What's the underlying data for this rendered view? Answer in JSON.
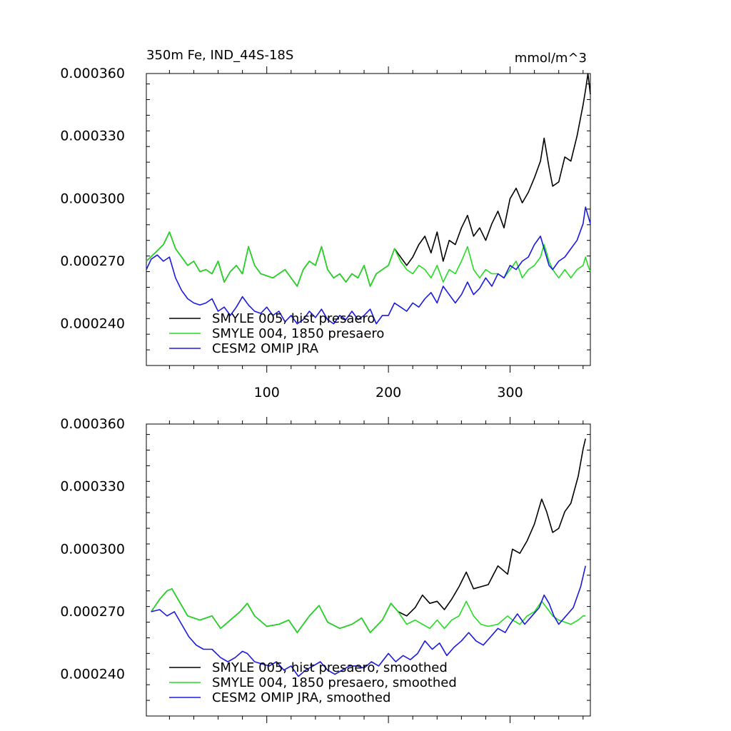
{
  "chart_data": [
    {
      "type": "line",
      "title": "350m Fe, IND_44S-18S",
      "units": "mmol/m^3",
      "xlim": [
        1,
        366
      ],
      "ylim": [
        0.00022,
        0.00036
      ],
      "x_ticks": [
        100,
        200,
        300
      ],
      "x_tick_labels": [
        "100",
        "200",
        "300"
      ],
      "y_ticks": [
        0.00024,
        0.00027,
        0.0003,
        0.00033,
        0.00036
      ],
      "y_tick_labels": [
        "0.000240",
        "0.000270",
        "0.000300",
        "0.000330",
        "0.000360"
      ],
      "legend_position": "bottom-left",
      "series": [
        {
          "name": "SMYLE 005, hist presaero",
          "color": "#000000",
          "x": [
            1,
            10,
            15,
            20,
            25,
            30,
            35,
            40,
            45,
            50,
            55,
            60,
            65,
            70,
            75,
            80,
            85,
            90,
            95,
            100,
            105,
            110,
            115,
            120,
            125,
            130,
            135,
            140,
            145,
            150,
            155,
            160,
            165,
            170,
            175,
            180,
            185,
            190,
            195,
            200,
            205,
            210,
            215,
            220,
            225,
            230,
            235,
            240,
            245,
            250,
            255,
            260,
            265,
            270,
            275,
            280,
            285,
            290,
            295,
            300,
            305,
            310,
            315,
            320,
            325,
            328,
            332,
            335,
            340,
            345,
            350,
            355,
            360,
            362,
            364,
            366
          ],
          "values": [
            0.00027,
            0.000275,
            0.000278,
            0.000284,
            0.000276,
            0.000272,
            0.000268,
            0.00027,
            0.000265,
            0.000266,
            0.000264,
            0.00027,
            0.00026,
            0.000265,
            0.000268,
            0.000264,
            0.000277,
            0.000268,
            0.000264,
            0.000263,
            0.000262,
            0.000264,
            0.000266,
            0.000262,
            0.000258,
            0.000266,
            0.00027,
            0.000268,
            0.000277,
            0.000266,
            0.000262,
            0.000264,
            0.00026,
            0.000264,
            0.000262,
            0.000268,
            0.000258,
            0.000264,
            0.000266,
            0.000268,
            0.000276,
            0.000272,
            0.000268,
            0.000272,
            0.000278,
            0.000282,
            0.000274,
            0.000284,
            0.00027,
            0.00028,
            0.000278,
            0.000286,
            0.000292,
            0.000282,
            0.000286,
            0.00028,
            0.000288,
            0.000294,
            0.000286,
            0.0003,
            0.000305,
            0.000298,
            0.000303,
            0.00031,
            0.000318,
            0.000329,
            0.000315,
            0.000306,
            0.000308,
            0.00032,
            0.000318,
            0.00033,
            0.000345,
            0.000352,
            0.00036,
            0.00035
          ]
        },
        {
          "name": "SMYLE 004, 1850 presaero",
          "color": "#22dd22",
          "x": [
            1,
            10,
            15,
            20,
            25,
            30,
            35,
            40,
            45,
            50,
            55,
            60,
            65,
            70,
            75,
            80,
            85,
            90,
            95,
            100,
            105,
            110,
            115,
            120,
            125,
            130,
            135,
            140,
            145,
            150,
            155,
            160,
            165,
            170,
            175,
            180,
            185,
            190,
            195,
            200,
            205,
            210,
            215,
            220,
            225,
            230,
            235,
            240,
            245,
            250,
            255,
            260,
            265,
            270,
            275,
            280,
            285,
            290,
            295,
            300,
            305,
            310,
            315,
            320,
            325,
            328,
            332,
            335,
            340,
            345,
            350,
            355,
            360,
            362,
            364,
            366
          ],
          "values": [
            0.00027,
            0.000275,
            0.000278,
            0.000284,
            0.000276,
            0.000272,
            0.000268,
            0.00027,
            0.000265,
            0.000266,
            0.000264,
            0.00027,
            0.00026,
            0.000265,
            0.000268,
            0.000264,
            0.000277,
            0.000268,
            0.000264,
            0.000263,
            0.000262,
            0.000264,
            0.000266,
            0.000262,
            0.000258,
            0.000266,
            0.00027,
            0.000268,
            0.000277,
            0.000266,
            0.000262,
            0.000264,
            0.00026,
            0.000264,
            0.000262,
            0.000268,
            0.000258,
            0.000264,
            0.000266,
            0.000268,
            0.000276,
            0.00027,
            0.000266,
            0.000264,
            0.000268,
            0.000266,
            0.000262,
            0.000268,
            0.00026,
            0.000266,
            0.000264,
            0.00027,
            0.000277,
            0.000266,
            0.000262,
            0.000266,
            0.000264,
            0.000264,
            0.000262,
            0.000266,
            0.00027,
            0.000262,
            0.000266,
            0.000268,
            0.000272,
            0.000278,
            0.00027,
            0.000266,
            0.000262,
            0.000266,
            0.000262,
            0.000266,
            0.000268,
            0.000272,
            0.000268,
            0.000265
          ]
        },
        {
          "name": "CESM2 OMIP JRA",
          "color": "#1a1add",
          "x": [
            1,
            5,
            10,
            15,
            20,
            25,
            30,
            35,
            40,
            45,
            50,
            55,
            60,
            65,
            70,
            75,
            80,
            85,
            90,
            95,
            100,
            105,
            110,
            115,
            120,
            125,
            130,
            135,
            140,
            145,
            150,
            155,
            160,
            165,
            170,
            175,
            180,
            185,
            190,
            195,
            200,
            205,
            210,
            215,
            220,
            225,
            230,
            235,
            240,
            245,
            250,
            255,
            260,
            265,
            270,
            275,
            280,
            285,
            290,
            295,
            300,
            305,
            310,
            315,
            320,
            325,
            328,
            332,
            335,
            340,
            345,
            350,
            355,
            360,
            362,
            364,
            366
          ],
          "values": [
            0.000266,
            0.000271,
            0.000273,
            0.00027,
            0.000272,
            0.000262,
            0.000256,
            0.000252,
            0.00025,
            0.000249,
            0.00025,
            0.000252,
            0.000246,
            0.000248,
            0.000244,
            0.000248,
            0.000253,
            0.000249,
            0.000246,
            0.000245,
            0.000248,
            0.000244,
            0.000246,
            0.000241,
            0.000244,
            0.00024,
            0.000242,
            0.000246,
            0.000243,
            0.000247,
            0.000242,
            0.00024,
            0.000244,
            0.000242,
            0.000246,
            0.000242,
            0.000244,
            0.000247,
            0.00024,
            0.000244,
            0.000244,
            0.00025,
            0.000248,
            0.000246,
            0.00025,
            0.000248,
            0.000252,
            0.000255,
            0.00025,
            0.000258,
            0.000254,
            0.00025,
            0.000254,
            0.00026,
            0.000254,
            0.000257,
            0.000262,
            0.000258,
            0.000264,
            0.000262,
            0.000268,
            0.000266,
            0.00027,
            0.000272,
            0.000278,
            0.000282,
            0.000276,
            0.000268,
            0.000266,
            0.00027,
            0.000272,
            0.000276,
            0.00028,
            0.000288,
            0.000296,
            0.000292,
            0.000288
          ]
        }
      ]
    },
    {
      "type": "line",
      "title": "",
      "units": "",
      "xlim": [
        1,
        366
      ],
      "ylim": [
        0.00022,
        0.00036
      ],
      "x_ticks": [
        100,
        200,
        300
      ],
      "x_tick_labels": [],
      "y_ticks": [
        0.00024,
        0.00027,
        0.0003,
        0.00033,
        0.00036
      ],
      "y_tick_labels": [
        "0.000240",
        "0.000270",
        "0.000300",
        "0.000330",
        "0.000360"
      ],
      "legend_position": "bottom-left",
      "series": [
        {
          "name": "SMYLE 005, hist presaero, smoothed",
          "color": "#000000",
          "x": [
            5,
            12,
            18,
            22,
            28,
            35,
            45,
            55,
            62,
            70,
            78,
            84,
            90,
            100,
            110,
            118,
            125,
            135,
            143,
            150,
            160,
            170,
            178,
            185,
            195,
            202,
            208,
            215,
            222,
            228,
            234,
            240,
            246,
            252,
            258,
            264,
            270,
            276,
            282,
            290,
            298,
            302,
            308,
            314,
            320,
            326,
            330,
            335,
            340,
            345,
            350,
            356,
            360,
            362
          ],
          "values": [
            0.00027,
            0.000276,
            0.00028,
            0.000281,
            0.000275,
            0.000268,
            0.000266,
            0.000268,
            0.000262,
            0.000266,
            0.00027,
            0.000274,
            0.000268,
            0.000263,
            0.000264,
            0.000266,
            0.00026,
            0.000268,
            0.000273,
            0.000265,
            0.000262,
            0.000264,
            0.000267,
            0.00026,
            0.000266,
            0.000274,
            0.00027,
            0.000268,
            0.000272,
            0.000278,
            0.000274,
            0.000275,
            0.000271,
            0.000276,
            0.000282,
            0.000289,
            0.000281,
            0.000282,
            0.000283,
            0.000292,
            0.000288,
            0.0003,
            0.000298,
            0.000304,
            0.000312,
            0.000324,
            0.000318,
            0.000308,
            0.00031,
            0.000318,
            0.000322,
            0.000335,
            0.000348,
            0.000353
          ]
        },
        {
          "name": "SMYLE 004, 1850 presaero, smoothed",
          "color": "#22dd22",
          "x": [
            5,
            12,
            18,
            22,
            28,
            35,
            45,
            55,
            62,
            70,
            78,
            84,
            90,
            100,
            110,
            118,
            125,
            135,
            143,
            150,
            160,
            170,
            178,
            185,
            195,
            202,
            208,
            215,
            222,
            228,
            234,
            240,
            246,
            252,
            258,
            264,
            270,
            276,
            282,
            290,
            298,
            302,
            308,
            314,
            320,
            326,
            330,
            335,
            340,
            345,
            350,
            356,
            360,
            362
          ],
          "values": [
            0.00027,
            0.000276,
            0.00028,
            0.000281,
            0.000275,
            0.000268,
            0.000266,
            0.000268,
            0.000262,
            0.000266,
            0.00027,
            0.000274,
            0.000268,
            0.000263,
            0.000264,
            0.000266,
            0.00026,
            0.000268,
            0.000273,
            0.000265,
            0.000262,
            0.000264,
            0.000267,
            0.00026,
            0.000266,
            0.000274,
            0.00027,
            0.000264,
            0.000266,
            0.000264,
            0.000262,
            0.000266,
            0.000262,
            0.000266,
            0.000268,
            0.000275,
            0.000268,
            0.000264,
            0.000263,
            0.000264,
            0.000268,
            0.000266,
            0.000264,
            0.000268,
            0.00027,
            0.000275,
            0.000272,
            0.000268,
            0.000266,
            0.000265,
            0.000264,
            0.000266,
            0.000268,
            0.000268
          ]
        },
        {
          "name": "CESM2 OMIP JRA, smoothed",
          "color": "#1a1add",
          "x": [
            5,
            12,
            18,
            24,
            30,
            36,
            42,
            48,
            55,
            62,
            68,
            74,
            80,
            84,
            90,
            96,
            102,
            108,
            114,
            120,
            126,
            132,
            138,
            144,
            150,
            156,
            162,
            168,
            174,
            180,
            186,
            192,
            200,
            206,
            212,
            218,
            224,
            230,
            236,
            242,
            248,
            254,
            260,
            266,
            272,
            278,
            284,
            290,
            296,
            300,
            306,
            312,
            318,
            324,
            328,
            332,
            336,
            340,
            346,
            352,
            358,
            362
          ],
          "values": [
            0.00027,
            0.000271,
            0.000268,
            0.00027,
            0.000264,
            0.000258,
            0.000254,
            0.000252,
            0.000252,
            0.000248,
            0.000246,
            0.000248,
            0.000251,
            0.00025,
            0.000246,
            0.000245,
            0.000244,
            0.000246,
            0.000242,
            0.000244,
            0.000239,
            0.000242,
            0.000244,
            0.000246,
            0.000242,
            0.00024,
            0.000242,
            0.000244,
            0.000244,
            0.000243,
            0.000246,
            0.000244,
            0.00025,
            0.000246,
            0.000249,
            0.000247,
            0.00025,
            0.000256,
            0.000252,
            0.000255,
            0.000249,
            0.000253,
            0.000256,
            0.00026,
            0.000256,
            0.000254,
            0.000258,
            0.000262,
            0.00026,
            0.000264,
            0.000269,
            0.000264,
            0.000268,
            0.000272,
            0.000278,
            0.000274,
            0.000268,
            0.000264,
            0.000268,
            0.000272,
            0.000282,
            0.000292
          ]
        }
      ]
    }
  ]
}
